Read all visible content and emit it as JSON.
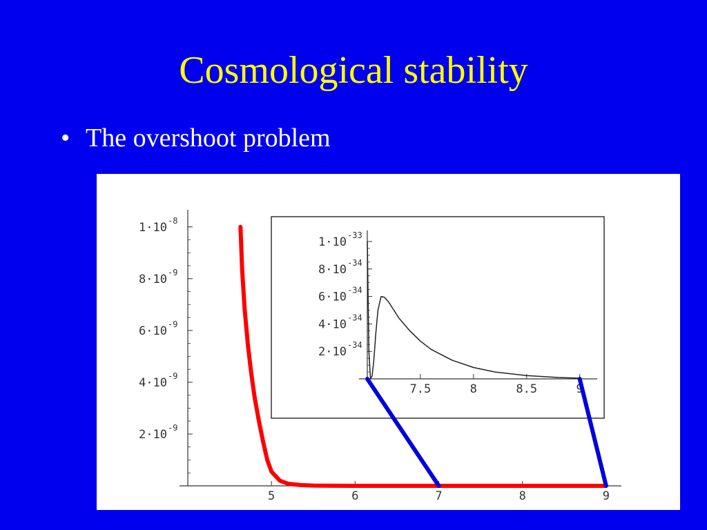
{
  "slide": {
    "title": "Cosmological stability",
    "bullet_marker": "•",
    "bullet_text": "The overshoot problem"
  },
  "colors": {
    "background": "#0000ee",
    "title": "#ffff00",
    "text": "#ffffff",
    "main_curve": "#ff0000",
    "zoom_lines": "#0000dd",
    "inset_curve": "#222222"
  },
  "chart_data": [
    {
      "type": "line",
      "title": "",
      "xlabel": "",
      "ylabel": "",
      "xlim": [
        4.0,
        9.1
      ],
      "ylim": [
        0,
        1.05e-08
      ],
      "x_ticks": [
        {
          "value": 5,
          "label": "5"
        },
        {
          "value": 6,
          "label": "6"
        },
        {
          "value": 7,
          "label": "7"
        },
        {
          "value": 8,
          "label": "8"
        },
        {
          "value": 9,
          "label": "9"
        }
      ],
      "y_ticks": [
        {
          "value": 2e-09,
          "mant": "2·10",
          "exp": "-9"
        },
        {
          "value": 4e-09,
          "mant": "4·10",
          "exp": "-9"
        },
        {
          "value": 6e-09,
          "mant": "6·10",
          "exp": "-9"
        },
        {
          "value": 8e-09,
          "mant": "8·10",
          "exp": "-9"
        },
        {
          "value": 1e-08,
          "mant": "1·10",
          "exp": "-8"
        }
      ],
      "series": [
        {
          "x": [
            4.63,
            4.65,
            4.68,
            4.72,
            4.76,
            4.8,
            4.85,
            4.9,
            4.95,
            5.0,
            5.1,
            5.2,
            5.35,
            5.5,
            5.75,
            6.0,
            6.5,
            7.0,
            7.5,
            8.0,
            8.5,
            9.0
          ],
          "y": [
            1e-08,
            8.3e-09,
            6.8e-09,
            5.4e-09,
            4.3e-09,
            3.4e-09,
            2.5e-09,
            1.7e-09,
            1e-09,
            5.5e-10,
            2e-10,
            8e-11,
            3e-11,
            1e-11,
            3e-12,
            1e-12,
            2e-13,
            5e-14,
            1e-14,
            2e-15,
            5e-16,
            1e-16
          ]
        }
      ]
    },
    {
      "type": "line",
      "title": "",
      "xlabel": "",
      "ylabel": "",
      "xlim": [
        7.0,
        9.1
      ],
      "ylim": [
        0,
        1.05e-33
      ],
      "x_ticks": [
        {
          "value": 7.5,
          "label": "7.5"
        },
        {
          "value": 8,
          "label": "8"
        },
        {
          "value": 8.5,
          "label": "8.5"
        },
        {
          "value": 9,
          "label": "9"
        }
      ],
      "y_ticks": [
        {
          "value": 2e-34,
          "mant": "2·10",
          "exp": "-34"
        },
        {
          "value": 4e-34,
          "mant": "4·10",
          "exp": "-34"
        },
        {
          "value": 6e-34,
          "mant": "6·10",
          "exp": "-34"
        },
        {
          "value": 8e-34,
          "mant": "8·10",
          "exp": "-34"
        },
        {
          "value": 1e-33,
          "mant": "1·10",
          "exp": "-33"
        }
      ],
      "series": [
        {
          "x": [
            7.0,
            7.015,
            7.03,
            7.045,
            7.06,
            7.08,
            7.1,
            7.13,
            7.16,
            7.2,
            7.25,
            7.3,
            7.4,
            7.5,
            7.6,
            7.8,
            8.0,
            8.2,
            8.5,
            8.8,
            9.0
          ],
          "y": [
            1e-33,
            2e-34,
            0,
            2e-35,
            1.2e-34,
            3.3e-34,
            5e-34,
            6e-34,
            5.95e-34,
            5.6e-34,
            5e-34,
            4.4e-34,
            3.5e-34,
            2.75e-34,
            2.15e-34,
            1.35e-34,
            8.3e-35,
            5e-35,
            2.4e-35,
            1e-35,
            5e-36
          ]
        }
      ]
    }
  ]
}
